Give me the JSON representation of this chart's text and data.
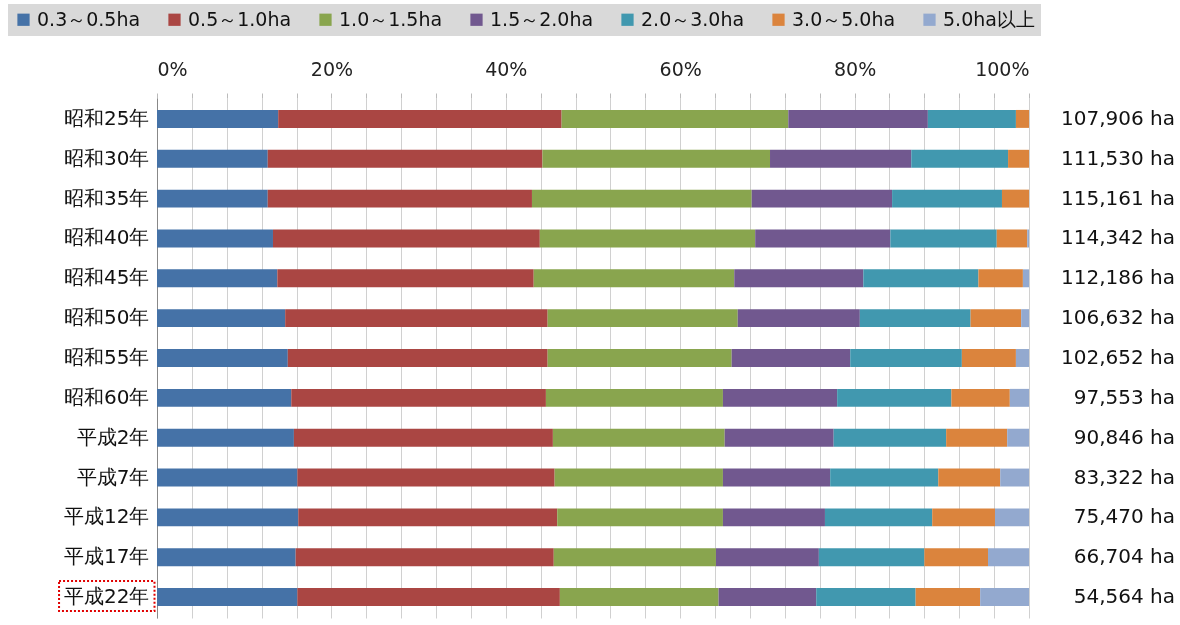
{
  "chart_data": {
    "type": "bar",
    "orientation": "horizontal",
    "stacked": true,
    "categories": [
      "昭和25年",
      "昭和30年",
      "昭和35年",
      "昭和40年",
      "昭和45年",
      "昭和50年",
      "昭和55年",
      "昭和60年",
      "平成2年",
      "平成7年",
      "平成12年",
      "平成17年",
      "平成22年"
    ],
    "series": [
      {
        "name": "0.3～0.5ha",
        "color": "#4572a7",
        "values": [
          13.9,
          12.7,
          12.7,
          13.3,
          13.8,
          14.7,
          15.0,
          15.4,
          15.7,
          16.1,
          16.2,
          15.9,
          16.1
        ]
      },
      {
        "name": "0.5～1.0ha",
        "color": "#aa4643",
        "values": [
          32.5,
          31.5,
          30.3,
          30.6,
          29.4,
          30.1,
          29.8,
          29.2,
          29.7,
          29.5,
          29.7,
          29.6,
          30.1
        ]
      },
      {
        "name": "1.0～1.5ha",
        "color": "#89a54e",
        "values": [
          26.0,
          26.1,
          25.2,
          24.7,
          23.0,
          21.8,
          21.1,
          20.3,
          19.7,
          19.3,
          19.0,
          18.6,
          18.2
        ]
      },
      {
        "name": "1.5～2.0ha",
        "color": "#71588f",
        "values": [
          16.0,
          16.2,
          16.1,
          15.5,
          14.8,
          14.0,
          13.6,
          13.1,
          12.5,
          12.3,
          11.7,
          11.8,
          11.2
        ]
      },
      {
        "name": "2.0～3.0ha",
        "color": "#4198af",
        "values": [
          10.1,
          11.1,
          12.6,
          12.2,
          13.2,
          12.7,
          12.8,
          13.1,
          12.9,
          12.4,
          12.3,
          12.1,
          11.4
        ]
      },
      {
        "name": "3.0～5.0ha",
        "color": "#db843d",
        "values": [
          1.5,
          2.4,
          3.1,
          3.5,
          5.1,
          5.8,
          6.2,
          6.7,
          7.0,
          7.1,
          7.2,
          7.3,
          7.4
        ]
      },
      {
        "name": "5.0ha以上",
        "color": "#93a9cf",
        "values": [
          0,
          0,
          0,
          0.2,
          0.7,
          0.9,
          1.5,
          2.2,
          2.5,
          3.3,
          3.9,
          4.7,
          5.6
        ]
      }
    ],
    "xlim": [
      0,
      100
    ],
    "xticks": [
      {
        "value": 0,
        "label": "0%"
      },
      {
        "value": 4,
        "label": null
      },
      {
        "value": 8,
        "label": null
      },
      {
        "value": 12,
        "label": null
      },
      {
        "value": 16,
        "label": null
      },
      {
        "value": 20,
        "label": "20%"
      },
      {
        "value": 24,
        "label": null
      },
      {
        "value": 28,
        "label": null
      },
      {
        "value": 32,
        "label": null
      },
      {
        "value": 36,
        "label": null
      },
      {
        "value": 40,
        "label": "40%"
      },
      {
        "value": 44,
        "label": null
      },
      {
        "value": 48,
        "label": null
      },
      {
        "value": 52,
        "label": null
      },
      {
        "value": 56,
        "label": null
      },
      {
        "value": 60,
        "label": "60%"
      },
      {
        "value": 64,
        "label": null
      },
      {
        "value": 68,
        "label": null
      },
      {
        "value": 72,
        "label": null
      },
      {
        "value": 76,
        "label": null
      },
      {
        "value": 80,
        "label": "80%"
      },
      {
        "value": 84,
        "label": null
      },
      {
        "value": 88,
        "label": null
      },
      {
        "value": 92,
        "label": null
      },
      {
        "value": 96,
        "label": null
      },
      {
        "value": 100,
        "label": "100%"
      }
    ],
    "annotations": [
      "107,906 ha",
      "111,530 ha",
      "115,161 ha",
      "114,342 ha",
      "112,186 ha",
      "106,632 ha",
      "102,652 ha",
      "97,553 ha",
      "90,846 ha",
      "83,322 ha",
      "75,470 ha",
      "66,704 ha",
      "54,564 ha"
    ],
    "grid": true,
    "legend": "top"
  }
}
